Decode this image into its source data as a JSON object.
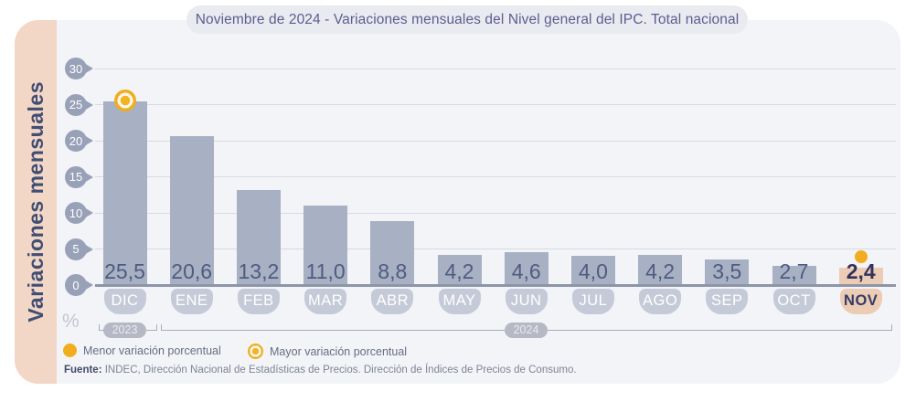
{
  "header": {
    "title": "Noviembre de 2024 - Variaciones mensuales del Nivel general del IPC. Total nacional"
  },
  "y_axis": {
    "label": "Variaciones mensuales",
    "unit_symbol": "%"
  },
  "chart_data": {
    "type": "bar",
    "title": "Noviembre de 2024 - Variaciones mensuales del Nivel general del IPC. Total nacional",
    "categories": [
      "DIC",
      "ENE",
      "FEB",
      "MAR",
      "ABR",
      "MAY",
      "JUN",
      "JUL",
      "AGO",
      "SEP",
      "OCT",
      "NOV"
    ],
    "values": [
      25.5,
      20.6,
      13.2,
      11.0,
      8.8,
      4.2,
      4.6,
      4.0,
      4.2,
      3.5,
      2.7,
      2.4
    ],
    "value_labels": [
      "25,5",
      "20,6",
      "13,2",
      "11,0",
      "8,8",
      "4,2",
      "4,6",
      "4,0",
      "4,2",
      "3,5",
      "2,7",
      "2,4"
    ],
    "xlabel": "",
    "ylabel": "Variaciones mensuales",
    "ylim": [
      0,
      30
    ],
    "yticks": [
      0,
      5,
      10,
      15,
      20,
      25,
      30
    ],
    "grid": true,
    "highlight_index": 11,
    "max_marker": {
      "index": 0,
      "style": "ring-dot",
      "meaning": "Mayor variación porcentual"
    },
    "min_marker": {
      "index": 11,
      "style": "solid-dot",
      "meaning": "Menor variación porcentual"
    },
    "year_groups": [
      {
        "label": "2023",
        "categories": [
          "DIC"
        ]
      },
      {
        "label": "2024",
        "categories": [
          "ENE",
          "FEB",
          "MAR",
          "ABR",
          "MAY",
          "JUN",
          "JUL",
          "AGO",
          "SEP",
          "OCT",
          "NOV"
        ]
      }
    ]
  },
  "legend": {
    "items": [
      {
        "marker": "solid-dot",
        "label": "Menor variación porcentual"
      },
      {
        "marker": "ring-dot",
        "label": "Mayor variación porcentual"
      }
    ]
  },
  "source": {
    "prefix": "Fuente:",
    "text": " INDEC, Dirección Nacional de Estadísticas de Precios. Dirección de Índices de Precios de Consumo."
  },
  "colors": {
    "bar": "#a7b1c3",
    "bar_highlight": "#edccb6",
    "accent_yellow": "#f0ad1f",
    "value_text": "#4f5b80",
    "value_text_highlight": "#32325c",
    "month_pill": "#c5cad8",
    "month_pill_text": "#ffffff",
    "axis_pin": "#99a1b8",
    "gridline": "#d8dae2",
    "baseline": "#8d95a8",
    "band": "#f2d6c6",
    "panel": "#f3f4f7",
    "title_text": "#5d5d8f",
    "year_pill": "#b6b9c5"
  }
}
